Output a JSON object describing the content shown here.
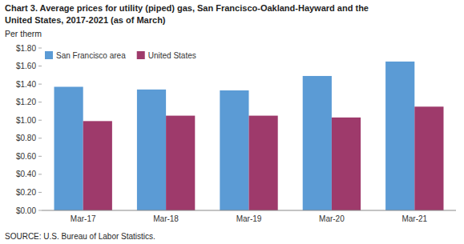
{
  "chart_data": {
    "type": "bar",
    "title": "Chart 3. Average prices for utility (piped) gas, San Francisco-Oakland-Hayward and the",
    "subtitle": "United States, 2017-2021  (as of March)",
    "ylabel": "Per therm",
    "source": "SOURCE: U.S. Bureau of Labor Statistics.",
    "categories": [
      "Mar-17",
      "Mar-18",
      "Mar-19",
      "Mar-20",
      "Mar-21"
    ],
    "series": [
      {
        "name": "San Francisco area",
        "color": "#5B9BD5",
        "values": [
          1.37,
          1.34,
          1.33,
          1.49,
          1.65
        ]
      },
      {
        "name": "United States",
        "color": "#9E3A6B",
        "values": [
          0.99,
          1.05,
          1.05,
          1.03,
          1.15
        ]
      }
    ],
    "ylim": [
      0,
      1.8
    ],
    "yticks": [
      {
        "value": 0.0,
        "label": "$0.00"
      },
      {
        "value": 0.2,
        "label": "$0.20"
      },
      {
        "value": 0.4,
        "label": "$0.40"
      },
      {
        "value": 0.6,
        "label": "$0.60"
      },
      {
        "value": 0.8,
        "label": "$0.80"
      },
      {
        "value": 1.0,
        "label": "$1.00"
      },
      {
        "value": 1.2,
        "label": "$1.20"
      },
      {
        "value": 1.4,
        "label": "$1.40"
      },
      {
        "value": 1.6,
        "label": "$1.60"
      },
      {
        "value": 1.8,
        "label": "$1.80"
      }
    ],
    "grid": false,
    "legend": "top-left"
  }
}
